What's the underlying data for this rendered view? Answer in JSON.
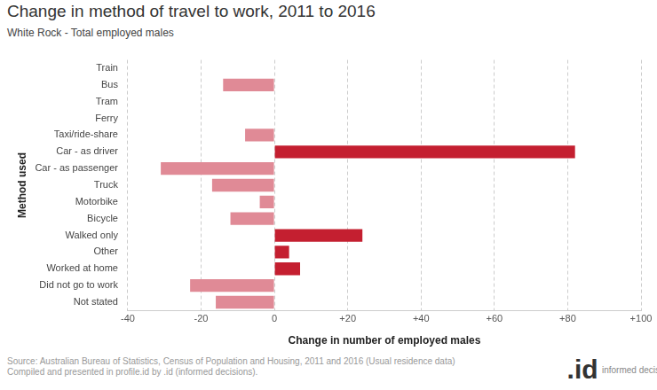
{
  "chart_data": {
    "type": "bar",
    "orientation": "horizontal",
    "title": "Change in method of travel to work, 2011 to 2016",
    "subtitle": "White Rock - Total employed males",
    "x_label": "Change in number of employed males",
    "y_label": "Method used",
    "categories": [
      "Train",
      "Bus",
      "Tram",
      "Ferry",
      "Taxi/ride-share",
      "Car - as driver",
      "Car - as passenger",
      "Truck",
      "Motorbike",
      "Bicycle",
      "Walked only",
      "Other",
      "Worked at home",
      "Did not go to work",
      "Not stated"
    ],
    "values": [
      0,
      -14,
      0,
      0,
      -8,
      82,
      -31,
      -17,
      -4,
      -12,
      24,
      4,
      7,
      -23,
      -16
    ],
    "colors": [
      "#e08a96",
      "#e08a96",
      "#e08a96",
      "#e08a96",
      "#e08a96",
      "#c41f30",
      "#e08a96",
      "#e08a96",
      "#e08a96",
      "#e08a96",
      "#c41f30",
      "#c41f30",
      "#c41f30",
      "#e08a96",
      "#e08a96"
    ],
    "xlim": [
      -40,
      100
    ],
    "xticks": [
      -40,
      -20,
      0,
      {
        "value": 20,
        "label": "+20"
      },
      {
        "value": 40,
        "label": "+40"
      },
      {
        "value": 60,
        "label": "+60"
      },
      {
        "value": 80,
        "label": "+80"
      },
      {
        "value": 100,
        "label": "+100"
      }
    ],
    "grid": true,
    "source": [
      "Source: Australian Bureau of Statistics, Census of Population and Housing, 2011 and 2016 (Usual residence data)",
      "Compiled and presented in profile.id by .id (informed decisions)."
    ],
    "logo": [
      ".id",
      "informed decisions"
    ]
  }
}
